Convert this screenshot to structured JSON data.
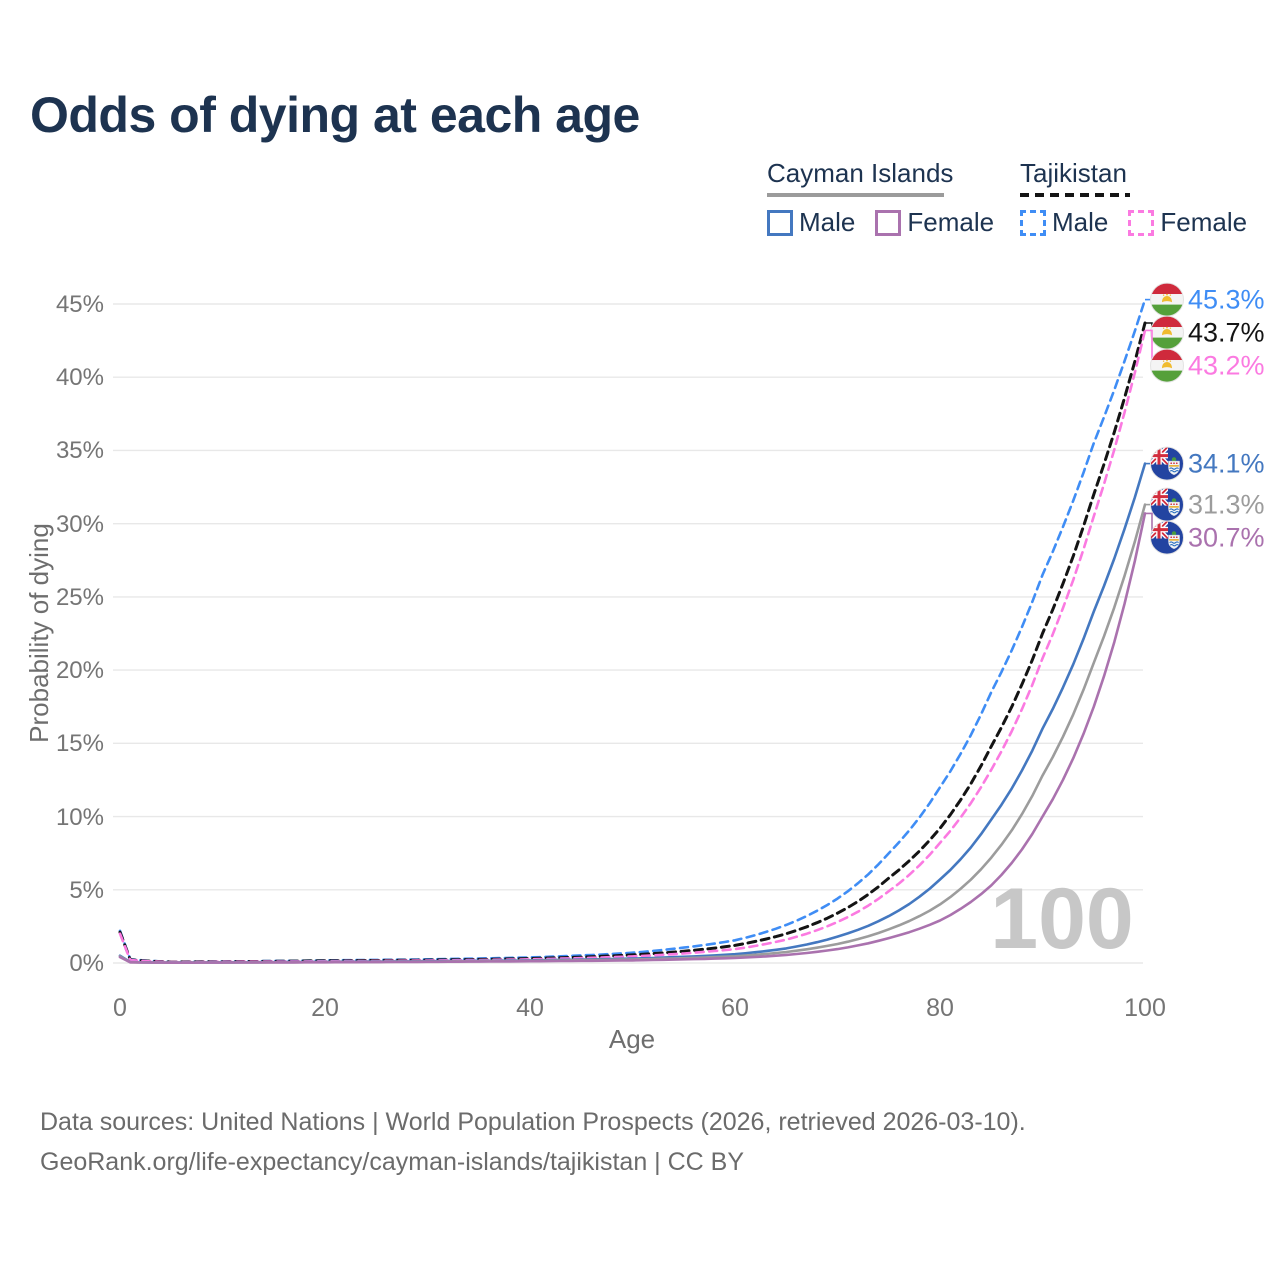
{
  "title": "Odds of dying at each age",
  "legend": {
    "groups": [
      {
        "label": "Cayman Islands",
        "line_style": "solid",
        "underline_color": "#9b9b9b",
        "items": [
          {
            "label": "Male",
            "color": "#4478c0"
          },
          {
            "label": "Female",
            "color": "#aa72ae"
          }
        ]
      },
      {
        "label": "Tajikistan",
        "line_style": "dashed",
        "underline_color": "#141414",
        "items": [
          {
            "label": "Male",
            "color": "#3f8df5"
          },
          {
            "label": "Female",
            "color": "#fb7ae1"
          }
        ]
      }
    ]
  },
  "axes": {
    "y_title": "Probability of dying",
    "x_title": "Age",
    "y_ticks": [
      "45%",
      "40%",
      "35%",
      "30%",
      "25%",
      "20%",
      "15%",
      "10%",
      "5%",
      "0%"
    ],
    "x_ticks": [
      "0",
      "20",
      "40",
      "60",
      "80",
      "100"
    ]
  },
  "watermark_age_label": "100",
  "footer": {
    "line1": "Data sources: United Nations | World Population Prospects (2026, retrieved 2026-03-10).",
    "line2": "GeoRank.org/life-expectancy/cayman-islands/tajikistan | CC BY"
  },
  "chart_data": {
    "type": "line",
    "xlabel": "Age",
    "ylabel": "Probability of dying",
    "xlim": [
      0,
      100
    ],
    "ylim": [
      0,
      45
    ],
    "grid": "horizontal",
    "legend_position": "top-right",
    "x": [
      0,
      1,
      5,
      10,
      20,
      30,
      40,
      50,
      55,
      60,
      65,
      70,
      75,
      80,
      85,
      90,
      95,
      100
    ],
    "series": [
      {
        "name": "Tajikistan Male",
        "country": "tajikistan",
        "sex": "male",
        "color": "#3f8df5",
        "dash": true,
        "end_label": "45.3%",
        "end_value": 45.3,
        "values": [
          2.2,
          0.25,
          0.08,
          0.1,
          0.18,
          0.25,
          0.38,
          0.7,
          1.05,
          1.55,
          2.6,
          4.4,
          7.5,
          12.0,
          18.5,
          26.5,
          35.5,
          45.3
        ]
      },
      {
        "name": "Tajikistan Both sexes",
        "country": "tajikistan",
        "sex": "both",
        "color": "#141414",
        "dash": true,
        "end_label": "43.7%",
        "end_value": 43.7,
        "values": [
          2.1,
          0.22,
          0.07,
          0.09,
          0.15,
          0.2,
          0.3,
          0.55,
          0.8,
          1.2,
          2.0,
          3.4,
          5.8,
          9.2,
          14.8,
          22.5,
          32.0,
          43.7
        ]
      },
      {
        "name": "Tajikistan Female",
        "country": "tajikistan",
        "sex": "female",
        "color": "#fb7ae1",
        "dash": true,
        "end_label": "43.2%",
        "end_value": 43.2,
        "values": [
          2.0,
          0.2,
          0.06,
          0.08,
          0.12,
          0.17,
          0.25,
          0.45,
          0.65,
          0.95,
          1.6,
          2.8,
          4.9,
          8.2,
          13.2,
          20.8,
          30.5,
          43.2
        ]
      },
      {
        "name": "Cayman Islands Male",
        "country": "cayman-islands",
        "sex": "male",
        "color": "#4478c0",
        "dash": false,
        "end_label": "34.1%",
        "end_value": 34.1,
        "values": [
          0.5,
          0.06,
          0.03,
          0.04,
          0.08,
          0.12,
          0.18,
          0.3,
          0.42,
          0.6,
          1.0,
          1.8,
          3.2,
          5.7,
          9.8,
          16.0,
          24.0,
          34.1
        ]
      },
      {
        "name": "Cayman Islands Both sexes",
        "country": "cayman-islands",
        "sex": "both",
        "color": "#9c9c9c",
        "dash": false,
        "end_label": "31.3%",
        "end_value": 31.3,
        "values": [
          0.45,
          0.05,
          0.025,
          0.035,
          0.06,
          0.1,
          0.15,
          0.24,
          0.33,
          0.46,
          0.75,
          1.3,
          2.3,
          4.0,
          7.2,
          12.8,
          20.5,
          31.3
        ]
      },
      {
        "name": "Cayman Islands Female",
        "country": "cayman-islands",
        "sex": "female",
        "color": "#aa72ae",
        "dash": false,
        "end_label": "30.7%",
        "end_value": 30.7,
        "values": [
          0.4,
          0.045,
          0.02,
          0.03,
          0.05,
          0.08,
          0.12,
          0.18,
          0.25,
          0.34,
          0.55,
          0.95,
          1.7,
          2.9,
          5.3,
          10.0,
          17.5,
          30.7
        ]
      }
    ]
  }
}
